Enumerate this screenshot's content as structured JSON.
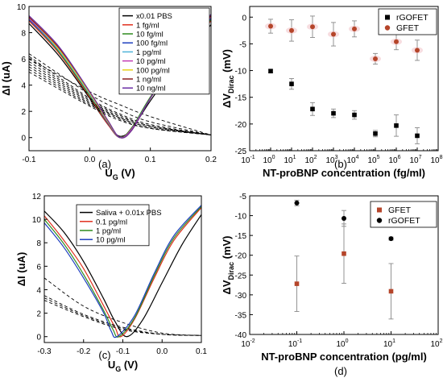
{
  "chart_data": [
    {
      "type": "line",
      "panel_label": "(a)",
      "xlabel": "U",
      "xlabel_sub": "G",
      "xlabel_unit": " (V)",
      "ylabel": "ΔI (uA)",
      "xlim": [
        -0.1,
        0.2
      ],
      "ylim": [
        -1,
        10
      ],
      "xticks": [
        -0.1,
        0.0,
        0.1,
        0.2
      ],
      "xtick_labels": [
        "-0.1",
        "0.0",
        "0.1",
        "0.2"
      ],
      "yticks": [
        0,
        2,
        4,
        6,
        8,
        10
      ],
      "ytick_labels": [
        "0",
        "2",
        "4",
        "6",
        "8",
        "10"
      ],
      "legend_position": "top-right",
      "series": [
        {
          "name": "x0.01 PBS",
          "color": "#000000",
          "x": [
            -0.1,
            -0.05,
            0.0,
            0.03,
            0.05,
            0.07,
            0.1,
            0.15,
            0.2
          ],
          "y": [
            8.7,
            6.2,
            3.0,
            1.0,
            0.1,
            0.7,
            2.8,
            6.0,
            8.6
          ],
          "dashed_x": [
            -0.1,
            0.0,
            0.05,
            0.1,
            0.2
          ],
          "dashed_y": [
            6.0,
            3.5,
            2.5,
            1.6,
            0.2
          ]
        },
        {
          "name": "1 fg/ml",
          "color": "#e0301e",
          "x": [
            -0.1,
            -0.05,
            0.0,
            0.03,
            0.05,
            0.07,
            0.1,
            0.15,
            0.2
          ],
          "y": [
            8.9,
            6.4,
            3.1,
            1.0,
            0.0,
            0.8,
            3.0,
            6.3,
            8.9
          ],
          "dashed_x": [
            -0.1,
            0.0,
            0.05,
            0.1,
            0.2
          ],
          "dashed_y": [
            6.4,
            3.3,
            2.1,
            1.2,
            0.2
          ]
        },
        {
          "name": "10 fg/ml",
          "color": "#2e8b1e",
          "x": [
            -0.1,
            -0.05,
            0.0,
            0.03,
            0.05,
            0.07,
            0.1,
            0.15,
            0.2
          ],
          "y": [
            9.0,
            6.5,
            3.2,
            1.1,
            0.0,
            0.8,
            3.1,
            6.4,
            9.0
          ],
          "dashed_x": [
            -0.1,
            0.0,
            0.05,
            0.1,
            0.2
          ],
          "dashed_y": [
            6.2,
            3.0,
            1.8,
            1.0,
            0.2
          ]
        },
        {
          "name": "100 fg/ml",
          "color": "#1e3fbf",
          "x": [
            -0.1,
            -0.05,
            0.0,
            0.03,
            0.05,
            0.07,
            0.1,
            0.15,
            0.2
          ],
          "y": [
            9.0,
            6.6,
            3.3,
            1.1,
            0.0,
            0.7,
            3.0,
            6.5,
            9.1
          ],
          "dashed_x": [
            -0.1,
            0.0,
            0.05,
            0.1,
            0.2
          ],
          "dashed_y": [
            6.0,
            2.9,
            1.7,
            0.9,
            0.2
          ]
        },
        {
          "name": "1 pg/ml",
          "color": "#4fb3d8",
          "x": [
            -0.1,
            -0.05,
            0.0,
            0.03,
            0.05,
            0.07,
            0.1,
            0.15,
            0.2
          ],
          "y": [
            9.1,
            6.6,
            3.3,
            1.2,
            0.0,
            0.7,
            3.0,
            6.5,
            9.2
          ],
          "dashed_x": [
            -0.1,
            0.0,
            0.05,
            0.1,
            0.2
          ],
          "dashed_y": [
            5.8,
            2.8,
            1.6,
            0.9,
            0.2
          ]
        },
        {
          "name": "10 pg/ml",
          "color": "#c23cb4",
          "x": [
            -0.1,
            -0.05,
            0.0,
            0.03,
            0.05,
            0.07,
            0.1,
            0.15,
            0.2
          ],
          "y": [
            9.1,
            6.7,
            3.4,
            1.2,
            0.0,
            0.7,
            3.0,
            6.6,
            9.2
          ],
          "dashed_x": [
            -0.1,
            0.0,
            0.05,
            0.1,
            0.2
          ],
          "dashed_y": [
            5.6,
            2.7,
            1.5,
            0.8,
            0.2
          ]
        },
        {
          "name": "100 pg/ml",
          "color": "#e8d21a",
          "x": [
            -0.1,
            -0.05,
            0.0,
            0.03,
            0.05,
            0.07,
            0.1,
            0.15,
            0.2
          ],
          "y": [
            9.2,
            6.7,
            3.4,
            1.2,
            0.0,
            0.6,
            3.0,
            6.6,
            9.3
          ],
          "dashed_x": [
            -0.1,
            0.0,
            0.05,
            0.1,
            0.2
          ],
          "dashed_y": [
            5.4,
            2.6,
            1.5,
            0.8,
            0.2
          ]
        },
        {
          "name": "1 ng/ml",
          "color": "#8b1e1e",
          "x": [
            -0.1,
            -0.05,
            0.0,
            0.03,
            0.05,
            0.07,
            0.1,
            0.15,
            0.2
          ],
          "y": [
            9.2,
            6.8,
            3.5,
            1.3,
            0.0,
            0.6,
            3.0,
            6.6,
            9.3
          ],
          "dashed_x": [
            -0.1,
            0.0,
            0.05,
            0.1,
            0.2
          ],
          "dashed_y": [
            5.2,
            2.5,
            1.4,
            0.7,
            0.2
          ]
        },
        {
          "name": "10 ng/ml",
          "color": "#6a2fa6",
          "x": [
            -0.1,
            -0.05,
            0.0,
            0.03,
            0.05,
            0.07,
            0.1,
            0.15,
            0.2
          ],
          "y": [
            9.3,
            6.9,
            3.5,
            1.3,
            0.0,
            0.6,
            3.0,
            6.7,
            9.4
          ],
          "dashed_x": [
            -0.1,
            0.0,
            0.05,
            0.1,
            0.2
          ],
          "dashed_y": [
            5.0,
            2.4,
            1.3,
            0.7,
            0.2
          ]
        }
      ]
    },
    {
      "type": "scatter",
      "panel_label": "(b)",
      "xlabel": "NT-proBNP concentration (fg/ml)",
      "ylabel": "ΔV",
      "ylabel_sub": "Dirac",
      "ylabel_unit": " (mV)",
      "xscale": "log",
      "xlim": [
        0.1,
        100000000
      ],
      "ylim": [
        -25,
        2
      ],
      "xtick_exponents": [
        -1,
        0,
        1,
        2,
        3,
        4,
        5,
        6,
        7,
        8
      ],
      "xtick_base": "10",
      "yticks": [
        -25,
        -20,
        -15,
        -10,
        -5,
        0
      ],
      "ytick_labels": [
        "-25",
        "-20",
        "-15",
        "-10",
        "-5",
        "0"
      ],
      "legend_position": "top-right",
      "series": [
        {
          "name": "rGOFET",
          "marker": "square",
          "color": "#000000",
          "x": [
            1,
            10,
            100,
            1000,
            10000,
            100000,
            1000000,
            10000000
          ],
          "y": [
            -10.1,
            -12.5,
            -17.2,
            -18.0,
            -18.3,
            -21.8,
            -20.3,
            -22.2
          ],
          "err": [
            0.3,
            1.0,
            1.2,
            0.8,
            0.8,
            0.6,
            2.0,
            1.5
          ]
        },
        {
          "name": "GFET",
          "marker": "circle",
          "color": "#b5452a",
          "x": [
            1,
            10,
            100,
            1000,
            10000,
            100000,
            1000000,
            10000000
          ],
          "y": [
            -1.7,
            -2.5,
            -1.8,
            -3.2,
            -2.2,
            -7.8,
            -4.6,
            -6.2
          ],
          "err": [
            1.3,
            2.0,
            2.0,
            2.2,
            1.5,
            1.0,
            1.5,
            1.9
          ]
        }
      ]
    },
    {
      "type": "line",
      "panel_label": "(c)",
      "xlabel": "U",
      "xlabel_sub": "G",
      "xlabel_unit": " (V)",
      "ylabel": "ΔI (uA)",
      "xlim": [
        -0.3,
        0.1
      ],
      "ylim": [
        -0.5,
        12
      ],
      "xticks": [
        -0.3,
        -0.2,
        -0.1,
        0.0,
        0.1
      ],
      "xtick_labels": [
        "-0.3",
        "-0.2",
        "-0.1",
        "0.0",
        "0.1"
      ],
      "yticks": [
        0,
        2,
        4,
        6,
        8,
        10,
        12
      ],
      "ytick_labels": [
        "0",
        "2",
        "4",
        "6",
        "8",
        "10",
        "12"
      ],
      "legend_position": "top-left",
      "series": [
        {
          "name": "Saliva + 0.01x PBS",
          "color": "#000000",
          "x": [
            -0.3,
            -0.25,
            -0.2,
            -0.15,
            -0.12,
            -0.09,
            -0.05,
            0.0,
            0.05,
            0.1
          ],
          "y": [
            10.7,
            8.9,
            6.4,
            3.3,
            1.3,
            0.0,
            1.4,
            4.6,
            7.8,
            10.4
          ],
          "dashed_x": [
            -0.3,
            -0.2,
            -0.1,
            0.0,
            0.1
          ],
          "dashed_y": [
            5.0,
            2.6,
            1.2,
            0.3,
            0.1
          ]
        },
        {
          "name": "0.1 pg/ml",
          "color": "#e0301e",
          "x": [
            -0.3,
            -0.25,
            -0.2,
            -0.15,
            -0.12,
            -0.105,
            -0.07,
            -0.02,
            0.03,
            0.1
          ],
          "y": [
            10.3,
            8.2,
            5.8,
            2.7,
            0.8,
            0.0,
            1.5,
            5.0,
            8.2,
            11.0
          ],
          "dashed_x": [
            -0.3,
            -0.2,
            -0.1,
            0.0,
            0.1
          ],
          "dashed_y": [
            3.5,
            1.9,
            0.8,
            0.2,
            0.1
          ]
        },
        {
          "name": "1 pg/ml",
          "color": "#2e8b1e",
          "x": [
            -0.3,
            -0.25,
            -0.2,
            -0.15,
            -0.125,
            -0.11,
            -0.07,
            -0.02,
            0.03,
            0.1
          ],
          "y": [
            10.0,
            7.9,
            5.3,
            2.3,
            0.6,
            0.0,
            1.6,
            5.2,
            8.4,
            11.1
          ],
          "dashed_x": [
            -0.3,
            -0.2,
            -0.1,
            0.0,
            0.1
          ],
          "dashed_y": [
            3.3,
            1.8,
            0.7,
            0.2,
            0.1
          ]
        },
        {
          "name": "10 pg/ml",
          "color": "#1e3fbf",
          "x": [
            -0.3,
            -0.25,
            -0.2,
            -0.15,
            -0.13,
            -0.115,
            -0.07,
            -0.02,
            0.03,
            0.1
          ],
          "y": [
            9.7,
            7.6,
            5.0,
            2.1,
            0.5,
            0.0,
            1.8,
            5.4,
            8.6,
            11.2
          ],
          "dashed_x": [
            -0.3,
            -0.2,
            -0.1,
            0.0,
            0.1
          ],
          "dashed_y": [
            3.1,
            1.7,
            0.6,
            0.2,
            0.1
          ]
        }
      ]
    },
    {
      "type": "scatter",
      "panel_label": "(d)",
      "xlabel": "NT-proBNP concentration (pg/ml)",
      "ylabel": "ΔV",
      "ylabel_sub": "Dirac",
      "ylabel_unit": " (mV)",
      "xscale": "log",
      "xlim": [
        0.01,
        100
      ],
      "ylim": [
        -40,
        -5
      ],
      "xtick_exponents": [
        -2,
        -1,
        0,
        1,
        2
      ],
      "xtick_base": "10",
      "yticks": [
        -40,
        -35,
        -30,
        -25,
        -20,
        -15,
        -10,
        -5
      ],
      "ytick_labels": [
        "-40",
        "-35",
        "-30",
        "-25",
        "-20",
        "-15",
        "-10",
        "-5"
      ],
      "legend_position": "top-right",
      "series": [
        {
          "name": "GFET",
          "marker": "square",
          "color": "#b5452a",
          "x": [
            0.1,
            1,
            10
          ],
          "y": [
            -27.2,
            -19.6,
            -29.1
          ],
          "err": [
            7.0,
            7.5,
            7.0
          ]
        },
        {
          "name": "rGOFET",
          "marker": "circle",
          "color": "#000000",
          "x": [
            0.1,
            1,
            10
          ],
          "y": [
            -6.8,
            -10.7,
            -15.8
          ],
          "err": [
            0.7,
            2.0,
            0.4
          ]
        }
      ]
    }
  ]
}
